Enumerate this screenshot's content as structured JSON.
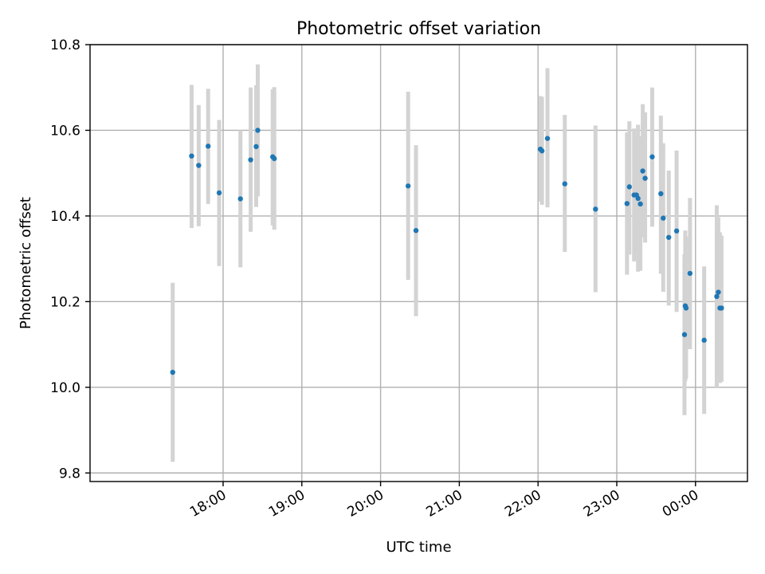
{
  "chart_data": {
    "type": "scatter",
    "title": "Photometric offset variation",
    "xlabel": "UTC time",
    "ylabel": "Photometric offset",
    "x_unit": "hours since 17:00 UTC",
    "xlim": [
      16.31,
      24.66
    ],
    "ylim": [
      9.78,
      10.8
    ],
    "grid": true,
    "colors": {
      "point": "#1f77b4",
      "errorbar": "#d3d3d3"
    },
    "x_ticks": [
      {
        "value": 18,
        "label": "18:00"
      },
      {
        "value": 19,
        "label": "19:00"
      },
      {
        "value": 20,
        "label": "20:00"
      },
      {
        "value": 21,
        "label": "21:00"
      },
      {
        "value": 22,
        "label": "22:00"
      },
      {
        "value": 23,
        "label": "23:00"
      },
      {
        "value": 24,
        "label": "00:00"
      }
    ],
    "y_ticks": [
      {
        "value": 9.8,
        "label": "9.8"
      },
      {
        "value": 10.0,
        "label": "10.0"
      },
      {
        "value": 10.2,
        "label": "10.2"
      },
      {
        "value": 10.4,
        "label": "10.4"
      },
      {
        "value": 10.6,
        "label": "10.6"
      },
      {
        "value": 10.8,
        "label": "10.8"
      }
    ],
    "points": [
      {
        "x": 17.36,
        "y": 10.035,
        "lo": 9.826,
        "hi": 10.244
      },
      {
        "x": 17.6,
        "y": 10.54,
        "lo": 10.372,
        "hi": 10.706
      },
      {
        "x": 17.69,
        "y": 10.518,
        "lo": 10.376,
        "hi": 10.659
      },
      {
        "x": 17.81,
        "y": 10.563,
        "lo": 10.428,
        "hi": 10.697
      },
      {
        "x": 17.95,
        "y": 10.454,
        "lo": 10.283,
        "hi": 10.624
      },
      {
        "x": 18.22,
        "y": 10.44,
        "lo": 10.28,
        "hi": 10.6
      },
      {
        "x": 18.35,
        "y": 10.531,
        "lo": 10.363,
        "hi": 10.7
      },
      {
        "x": 18.42,
        "y": 10.562,
        "lo": 10.421,
        "hi": 10.705
      },
      {
        "x": 18.44,
        "y": 10.6,
        "lo": 10.446,
        "hi": 10.754
      },
      {
        "x": 18.63,
        "y": 10.538,
        "lo": 10.378,
        "hi": 10.696
      },
      {
        "x": 18.65,
        "y": 10.534,
        "lo": 10.368,
        "hi": 10.701
      },
      {
        "x": 20.35,
        "y": 10.47,
        "lo": 10.251,
        "hi": 10.69
      },
      {
        "x": 20.45,
        "y": 10.366,
        "lo": 10.166,
        "hi": 10.565
      },
      {
        "x": 22.03,
        "y": 10.556,
        "lo": 10.434,
        "hi": 10.68
      },
      {
        "x": 22.05,
        "y": 10.552,
        "lo": 10.426,
        "hi": 10.678
      },
      {
        "x": 22.12,
        "y": 10.581,
        "lo": 10.42,
        "hi": 10.745
      },
      {
        "x": 22.34,
        "y": 10.475,
        "lo": 10.316,
        "hi": 10.636
      },
      {
        "x": 22.73,
        "y": 10.416,
        "lo": 10.222,
        "hi": 10.611
      },
      {
        "x": 23.13,
        "y": 10.429,
        "lo": 10.263,
        "hi": 10.595
      },
      {
        "x": 23.16,
        "y": 10.468,
        "lo": 10.31,
        "hi": 10.621
      },
      {
        "x": 23.22,
        "y": 10.449,
        "lo": 10.294,
        "hi": 10.604
      },
      {
        "x": 23.25,
        "y": 10.449,
        "lo": 10.315,
        "hi": 10.587
      },
      {
        "x": 23.27,
        "y": 10.441,
        "lo": 10.27,
        "hi": 10.613
      },
      {
        "x": 23.3,
        "y": 10.428,
        "lo": 10.272,
        "hi": 10.586
      },
      {
        "x": 23.33,
        "y": 10.505,
        "lo": 10.35,
        "hi": 10.661
      },
      {
        "x": 23.36,
        "y": 10.488,
        "lo": 10.338,
        "hi": 10.642
      },
      {
        "x": 23.45,
        "y": 10.538,
        "lo": 10.375,
        "hi": 10.7
      },
      {
        "x": 23.56,
        "y": 10.452,
        "lo": 10.265,
        "hi": 10.634
      },
      {
        "x": 23.59,
        "y": 10.395,
        "lo": 10.223,
        "hi": 10.57
      },
      {
        "x": 23.66,
        "y": 10.35,
        "lo": 10.191,
        "hi": 10.506
      },
      {
        "x": 23.76,
        "y": 10.365,
        "lo": 10.176,
        "hi": 10.553
      },
      {
        "x": 23.86,
        "y": 10.123,
        "lo": 9.935,
        "hi": 10.311
      },
      {
        "x": 23.87,
        "y": 10.19,
        "lo": 10.014,
        "hi": 10.366
      },
      {
        "x": 23.88,
        "y": 10.185,
        "lo": 10.02,
        "hi": 10.352
      },
      {
        "x": 23.93,
        "y": 10.266,
        "lo": 10.089,
        "hi": 10.442
      },
      {
        "x": 24.11,
        "y": 10.11,
        "lo": 9.938,
        "hi": 10.282
      },
      {
        "x": 24.27,
        "y": 10.212,
        "lo": 10.0,
        "hi": 10.425
      },
      {
        "x": 24.29,
        "y": 10.222,
        "lo": 10.046,
        "hi": 10.397
      },
      {
        "x": 24.31,
        "y": 10.185,
        "lo": 10.01,
        "hi": 10.362
      },
      {
        "x": 24.33,
        "y": 10.185,
        "lo": 10.013,
        "hi": 10.354
      }
    ]
  }
}
